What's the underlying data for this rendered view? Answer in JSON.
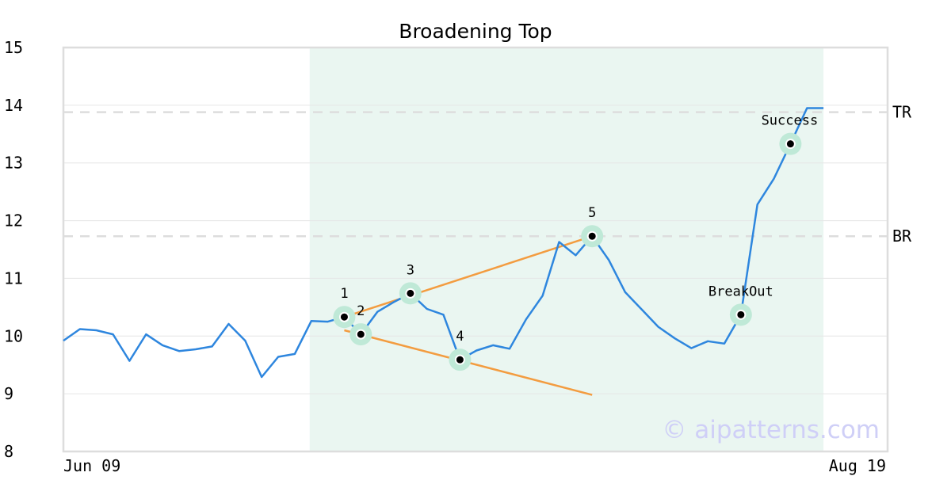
{
  "chart_data": {
    "type": "line",
    "title": "Broadening Top",
    "xlabel": "",
    "ylabel": "",
    "ylim": [
      8,
      15
    ],
    "yticks": [
      8,
      9,
      10,
      11,
      12,
      13,
      14,
      15
    ],
    "x_ticks": [
      "Jun 09",
      "Aug 19"
    ],
    "grid": true,
    "watermark": "© aipatterns.com",
    "series": [
      {
        "values": [
          9.92,
          10.12,
          10.1,
          10.03,
          9.57,
          10.03,
          9.84,
          9.74,
          9.77,
          9.82,
          10.21,
          9.92,
          9.29,
          9.64,
          9.69,
          10.26,
          10.25,
          10.33,
          10.03,
          10.42,
          10.59,
          10.74,
          10.47,
          10.37,
          9.59,
          9.75,
          9.84,
          9.78,
          10.29,
          10.7,
          11.63,
          11.4,
          11.73,
          11.32,
          10.76,
          10.46,
          10.16,
          9.96,
          9.79,
          9.91,
          9.87,
          10.37,
          12.28,
          12.73,
          13.33,
          13.95,
          13.95
        ],
        "color": "#2e86de"
      }
    ],
    "highlight_region": {
      "start_index": 15,
      "end_index": 46,
      "color": "#eaf6f1"
    },
    "reference_lines": [
      {
        "label": "TR",
        "value": 13.88
      },
      {
        "label": "BR",
        "value": 11.73
      }
    ],
    "trend_lines": [
      {
        "from": [
          17,
          10.33
        ],
        "to": [
          32,
          11.73
        ],
        "color": "#f39c40"
      },
      {
        "from": [
          17,
          10.1
        ],
        "to": [
          32,
          8.98
        ],
        "color": "#f39c40"
      }
    ],
    "annotations": [
      {
        "label": "1",
        "index": 17,
        "value": 10.33
      },
      {
        "label": "2",
        "index": 18,
        "value": 10.03
      },
      {
        "label": "3",
        "index": 21,
        "value": 10.74
      },
      {
        "label": "4",
        "index": 24,
        "value": 9.59
      },
      {
        "label": "5",
        "index": 32,
        "value": 11.73
      },
      {
        "label": "BreakOut",
        "index": 41,
        "value": 10.37
      },
      {
        "label": "Success",
        "index": 44,
        "value": 13.33
      }
    ]
  },
  "colors": {
    "line": "#2e86de",
    "trend": "#f39c40",
    "marker_halo": "#bfe9d7",
    "region": "#eaf6f1",
    "grid": "#e6e6e6",
    "ref_line": "#dddddd",
    "watermark": "#cfcff7",
    "frame": "#dddddd"
  }
}
